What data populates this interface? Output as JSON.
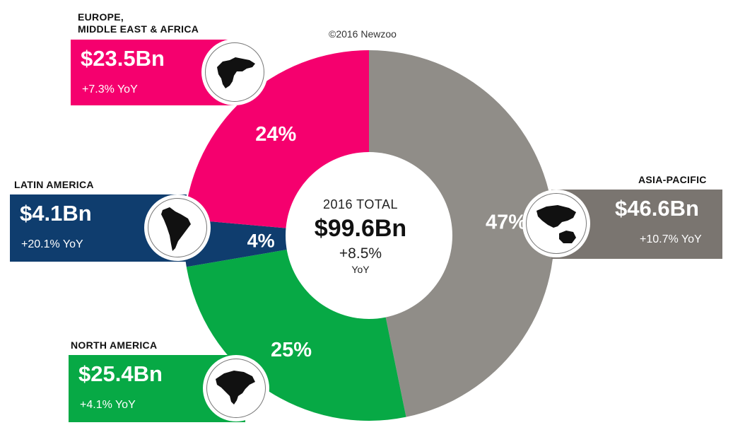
{
  "credit": "©2016 Newzoo",
  "center": {
    "total_label": "2016 TOTAL",
    "total_value": "$99.6Bn",
    "growth": "+8.5%",
    "growth_unit": "YoY"
  },
  "regions": {
    "emea": {
      "title": "EUROPE,\nMIDDLE EAST & AFRICA",
      "amount": "$23.5Bn",
      "yoy": "+7.3% YoY",
      "share_label": "24%",
      "color": "#f5006e"
    },
    "latam": {
      "title": "LATIN AMERICA",
      "amount": "$4.1Bn",
      "yoy": "+20.1% YoY",
      "share_label": "4%",
      "color": "#0f3d6e"
    },
    "namerica": {
      "title": "NORTH AMERICA",
      "amount": "$25.4Bn",
      "yoy": "+4.1% YoY",
      "share_label": "25%",
      "color": "#07a945"
    },
    "apac": {
      "title": "ASIA-PACIFIC",
      "amount": "$46.6Bn",
      "yoy": "+10.7% YoY",
      "share_label": "47%",
      "color": "#908d88",
      "card_color": "#7a7570"
    }
  },
  "chart_data": {
    "type": "pie",
    "variant": "donut",
    "categories": [
      "Asia-Pacific",
      "North America",
      "Latin America",
      "Europe, Middle East & Africa"
    ],
    "values": [
      46.6,
      25.4,
      4.1,
      23.5
    ],
    "percent_labels": [
      "47%",
      "25%",
      "4%",
      "24%"
    ],
    "total": 99.6,
    "colors": [
      "#908d88",
      "#07a945",
      "#0f3d6e",
      "#f5006e"
    ],
    "start": "top",
    "direction": "clockwise"
  }
}
